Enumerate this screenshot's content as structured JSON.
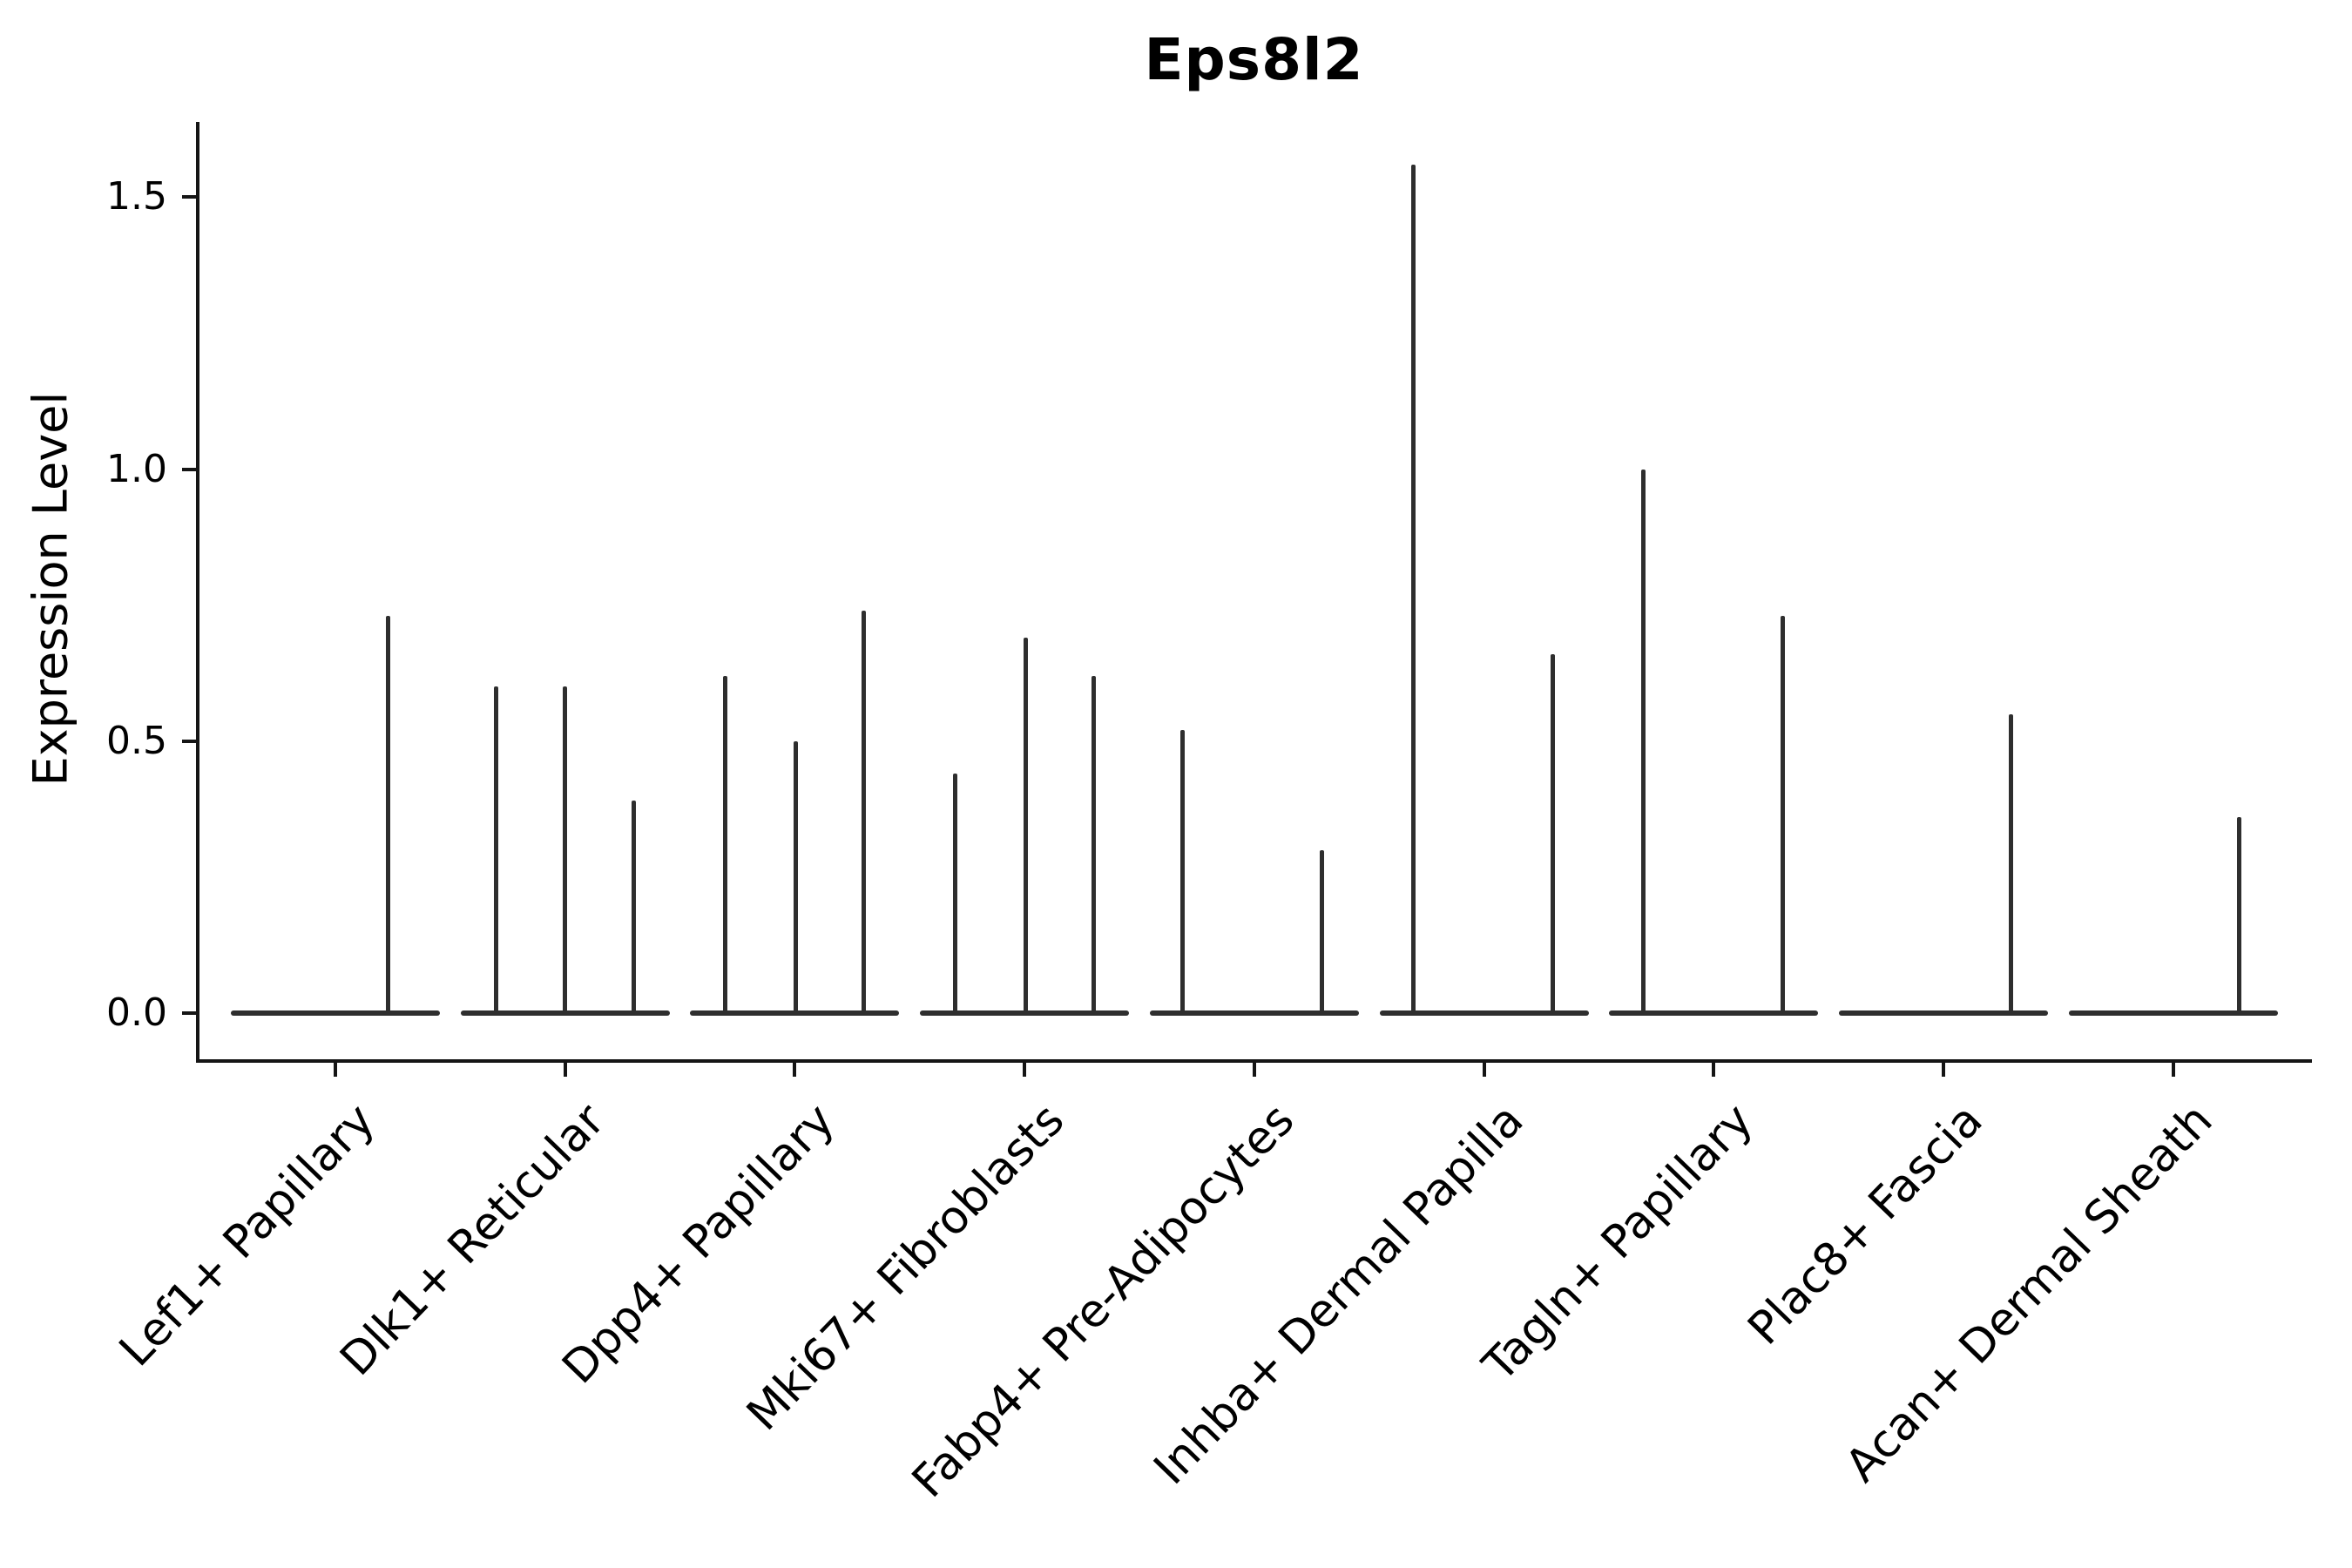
{
  "figure": {
    "title": "Eps8l2",
    "y_axis": {
      "label": "Expression Level",
      "ticks": [
        {
          "label": "0.0",
          "value": 0.0
        },
        {
          "label": "0.5",
          "value": 0.5
        },
        {
          "label": "1.0",
          "value": 1.0
        },
        {
          "label": "1.5",
          "value": 1.5
        }
      ]
    },
    "colors": {
      "violin": "#2e2e2e",
      "axis": "#151515",
      "text": "#000000",
      "background": "#ffffff"
    },
    "chart_data": {
      "type": "violin",
      "title": "Eps8l2",
      "xlabel": "",
      "ylabel": "Expression Level",
      "ylim": [
        0,
        1.64
      ],
      "yticks": [
        0.0,
        0.5,
        1.0,
        1.5
      ],
      "grid": false,
      "legend": "none",
      "description": "Sparse single-cell expression violin plot: each category shows a flat collapsed violin base at 0 with thin density spikes; spike offset is horizontal shift in px from category center, value is expression level at spike tip.",
      "categories": [
        "Lef1+ Papillary",
        "Dlk1+ Reticular",
        "Dpp4+ Papillary",
        "Mki67+ Fibroblasts",
        "Fabp4+ Pre-Adipocytes",
        "Inhba+ Dermal Papilla",
        "Tagln+ Papillary",
        "Plac8+ Fascia",
        "Acan+ Dermal Sheath"
      ],
      "violins": [
        {
          "category": "Lef1+ Papillary",
          "spikes": [
            {
              "offset": 60,
              "value": 0.73
            }
          ]
        },
        {
          "category": "Dlk1+ Reticular",
          "spikes": [
            {
              "offset": -79,
              "value": 0.6
            },
            {
              "offset": 0,
              "value": 0.6
            },
            {
              "offset": 79,
              "value": 0.39
            }
          ]
        },
        {
          "category": "Dpp4+ Papillary",
          "spikes": [
            {
              "offset": -80,
              "value": 0.62
            },
            {
              "offset": 1,
              "value": 0.5
            },
            {
              "offset": 79,
              "value": 0.74
            }
          ]
        },
        {
          "category": "Mki67+ Fibroblasts",
          "spikes": [
            {
              "offset": -80,
              "value": 0.44
            },
            {
              "offset": 1,
              "value": 0.69
            },
            {
              "offset": 79,
              "value": 0.62
            }
          ]
        },
        {
          "category": "Fabp4+ Pre-Adipocytes",
          "spikes": [
            {
              "offset": -82,
              "value": 0.52
            },
            {
              "offset": 78,
              "value": 0.3
            }
          ]
        },
        {
          "category": "Inhba+ Dermal Papilla",
          "spikes": [
            {
              "offset": -81,
              "value": 1.56
            },
            {
              "offset": 79,
              "value": 0.66
            }
          ]
        },
        {
          "category": "Tagln+ Papillary",
          "spikes": [
            {
              "offset": -81,
              "value": 1.0
            },
            {
              "offset": 79,
              "value": 0.73
            }
          ]
        },
        {
          "category": "Plac8+ Fascia",
          "spikes": [
            {
              "offset": 78,
              "value": 0.55
            }
          ]
        },
        {
          "category": "Acan+ Dermal Sheath",
          "spikes": [
            {
              "offset": 76,
              "value": 0.36
            }
          ]
        }
      ]
    }
  }
}
